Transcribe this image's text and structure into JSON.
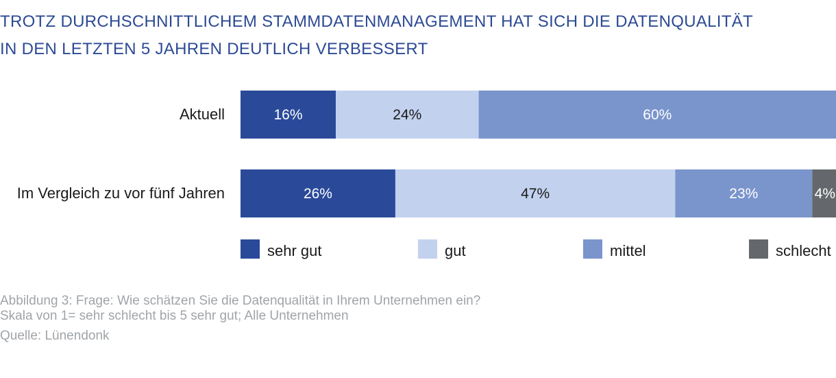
{
  "title_lines": [
    "TROTZ DURCHSCHNITTLICHEM STAMMDATENMANAGEMENT HAT SICH DIE DATENQUALITÄT",
    "IN DEN LETZTEN 5 JAHREN DEUTLICH VERBESSERT"
  ],
  "caption_lines": [
    "Abbildung 3: Frage: Wie schätzen Sie die Datenqualität in Ihrem Unternehmen ein?",
    "Skala von 1= sehr schlecht bis 5 sehr gut; Alle Unternehmen"
  ],
  "source": "Quelle: Lünendonk",
  "chart_data": {
    "type": "bar",
    "orientation": "horizontal",
    "stacked": true,
    "unit": "%",
    "categories": [
      "Aktuell",
      "Im Vergleich zu vor fünf Jahren"
    ],
    "series": [
      {
        "name": "sehr gut",
        "color": "#2a4a99",
        "label_color": "#ffffff",
        "values": [
          16,
          26
        ]
      },
      {
        "name": "gut",
        "color": "#c2d1ee",
        "label_color": "#1a1a1a",
        "values": [
          24,
          47
        ]
      },
      {
        "name": "mittel",
        "color": "#7a94cc",
        "label_color": "#ffffff",
        "values": [
          60,
          23
        ]
      },
      {
        "name": "schlecht",
        "color": "#64686c",
        "label_color": "#ffffff",
        "values": [
          0,
          4
        ]
      }
    ],
    "value_labels": [
      [
        "16%",
        "24%",
        "60%",
        ""
      ],
      [
        "26%",
        "47%",
        "23%",
        "4%"
      ]
    ],
    "xlim": [
      0,
      100
    ],
    "legend_position": "bottom",
    "grid": false
  }
}
